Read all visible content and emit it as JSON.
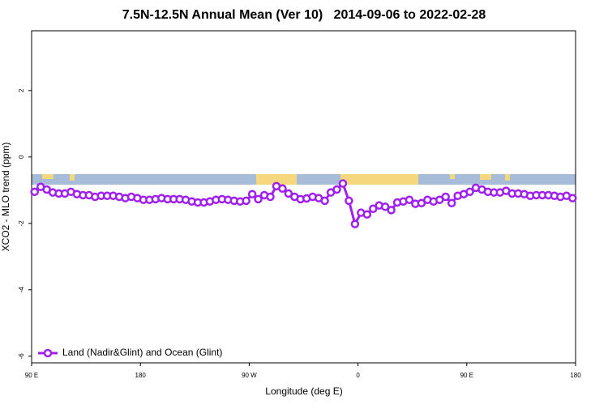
{
  "chart_data": {
    "type": "line",
    "title": "7.5N-12.5N Annual Mean (Ver 10)   2014-09-06 to 2022-02-28",
    "x_label": "Longitude (deg E)",
    "y_label": "XCO2 - MLO trend (ppm)",
    "xlim": [
      90,
      540
    ],
    "xticks": [
      {
        "value": 90,
        "label": "90 E"
      },
      180,
      {
        "value": 270,
        "label": "90 W"
      },
      {
        "value": 360,
        "label": "0"
      },
      {
        "value": 450,
        "label": "90 E"
      },
      {
        "value": 540,
        "label": "180"
      }
    ],
    "ylim": [
      -6.2,
      3.8
    ],
    "yticks": [
      -6,
      -4,
      -2,
      0,
      2
    ],
    "grid": false,
    "legend": "lower left",
    "x": [
      92.5,
      97.5,
      102.5,
      107.5,
      112.5,
      117.5,
      122.5,
      127.5,
      132.5,
      137.5,
      142.5,
      147.5,
      152.5,
      157.5,
      162.5,
      167.5,
      172.5,
      177.5,
      182.5,
      187.5,
      192.5,
      197.5,
      202.5,
      207.5,
      212.5,
      217.5,
      222.5,
      227.5,
      232.5,
      237.5,
      242.5,
      247.5,
      252.5,
      257.5,
      262.5,
      267.5,
      272.5,
      277.5,
      282.5,
      287.5,
      292.5,
      297.5,
      302.5,
      307.5,
      312.5,
      317.5,
      322.5,
      327.5,
      332.5,
      337.5,
      342.5,
      347.5,
      352.5,
      357.5,
      362.5,
      367.5,
      372.5,
      377.5,
      382.5,
      387.5,
      392.5,
      397.5,
      402.5,
      407.5,
      412.5,
      417.5,
      422.5,
      427.5,
      432.5,
      437.5,
      442.5,
      447.5,
      452.5,
      457.5,
      462.5,
      467.5,
      472.5,
      477.5,
      482.5,
      487.5,
      492.5,
      497.5,
      502.5,
      507.5,
      512.5,
      517.5,
      522.5,
      527.5,
      532.5,
      537.5
    ],
    "series": [
      {
        "name": "Land (Nadir&Glint) and Ocean (Glint)",
        "color": "#a020f0",
        "values": [
          -1.05,
          -0.9,
          -0.98,
          -1.07,
          -1.1,
          -1.1,
          -1.05,
          -1.12,
          -1.15,
          -1.15,
          -1.2,
          -1.17,
          -1.17,
          -1.17,
          -1.2,
          -1.24,
          -1.2,
          -1.24,
          -1.29,
          -1.29,
          -1.27,
          -1.24,
          -1.27,
          -1.27,
          -1.27,
          -1.29,
          -1.34,
          -1.37,
          -1.37,
          -1.34,
          -1.29,
          -1.27,
          -1.29,
          -1.32,
          -1.34,
          -1.32,
          -1.12,
          -1.27,
          -1.15,
          -1.2,
          -0.88,
          -0.95,
          -1.1,
          -1.2,
          -1.27,
          -1.25,
          -1.2,
          -1.24,
          -1.32,
          -1.07,
          -0.98,
          -0.8,
          -1.32,
          -2.02,
          -1.68,
          -1.73,
          -1.56,
          -1.46,
          -1.5,
          -1.6,
          -1.37,
          -1.34,
          -1.29,
          -1.41,
          -1.39,
          -1.29,
          -1.34,
          -1.29,
          -1.2,
          -1.39,
          -1.17,
          -1.12,
          -1.05,
          -0.93,
          -0.98,
          -1.05,
          -1.07,
          -1.07,
          -1.02,
          -1.1,
          -1.1,
          -1.12,
          -1.17,
          -1.15,
          -1.15,
          -1.15,
          -1.17,
          -1.2,
          -1.17,
          -1.24
        ]
      }
    ]
  }
}
